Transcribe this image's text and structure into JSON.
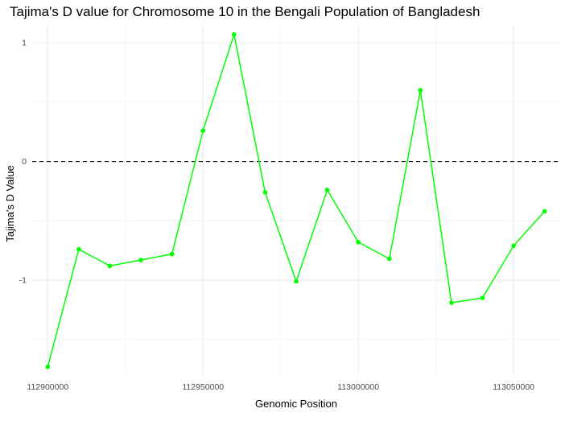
{
  "chart_data": {
    "type": "line",
    "title": "Tajima's D value for Chromosome 10 in the Bengali Population of Bangladesh",
    "xlabel": "Genomic Position",
    "ylabel": "Tajima's D Value",
    "xlim": [
      112895000,
      113065000
    ],
    "ylim": [
      -1.8,
      1.15
    ],
    "x_ticks": [
      112900000,
      112950000,
      113000000,
      113050000
    ],
    "x_tick_labels": [
      "112900000",
      "112950000",
      "113000000",
      "113050000"
    ],
    "y_ticks": [
      1,
      0,
      -1
    ],
    "y_tick_labels": [
      "1",
      "0",
      "-1"
    ],
    "reference_line": {
      "y": 0,
      "style": "dashed",
      "color": "#000000"
    },
    "grid": true,
    "legend": "none",
    "line_color": "#00ff00",
    "series": [
      {
        "x": [
          112900000,
          112910000,
          112920000,
          112930000,
          112940000,
          112950000,
          112960000,
          112970000,
          112980000,
          112990000,
          113000000,
          113010000,
          113020000,
          113030000,
          113040000,
          113050000,
          113060000
        ],
        "values": [
          -1.73,
          -0.74,
          -0.88,
          -0.83,
          -0.78,
          0.26,
          1.07,
          -0.26,
          -1.01,
          -0.24,
          -0.68,
          -0.82,
          0.6,
          -1.19,
          -1.15,
          -0.71,
          -0.42
        ]
      }
    ]
  }
}
